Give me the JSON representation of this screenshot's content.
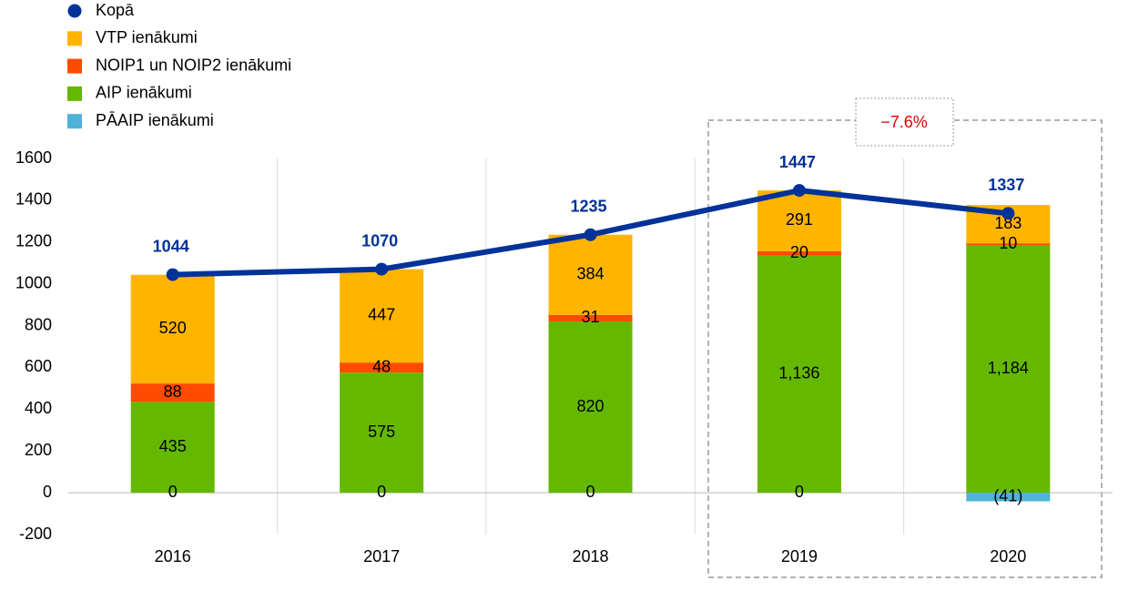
{
  "chart_data": {
    "type": "bar",
    "stacked": true,
    "categories": [
      "2016",
      "2017",
      "2018",
      "2019",
      "2020"
    ],
    "series": [
      {
        "name": "Kopā",
        "type": "line",
        "color": "#003299",
        "values": [
          1044,
          1070,
          1235,
          1447,
          1337
        ]
      },
      {
        "name": "VTP ienākumi",
        "color": "#FFB400",
        "values": [
          520,
          447,
          384,
          291,
          183
        ]
      },
      {
        "name": "NOIP1 un NOIP2 ienākumi",
        "color": "#FF4B00",
        "values": [
          88,
          48,
          31,
          20,
          10
        ]
      },
      {
        "name": "AIP ienākumi",
        "color": "#65B800",
        "values": [
          435,
          575,
          820,
          1136,
          1184
        ],
        "value_labels": [
          "435",
          "575",
          "820",
          "1,136",
          "1,184"
        ]
      },
      {
        "name": "PĀAIP ienākumi",
        "color": "#4FB3D9",
        "values": [
          0,
          0,
          0,
          0,
          -41
        ],
        "value_labels": [
          "0",
          "0",
          "0",
          "0",
          "(41)"
        ]
      }
    ],
    "annotation": "−7.6%",
    "ylim": [
      -200,
      1600
    ],
    "yticks": [
      -200,
      0,
      200,
      400,
      600,
      800,
      1000,
      1200,
      1400,
      1600
    ],
    "legend": "top-left"
  }
}
